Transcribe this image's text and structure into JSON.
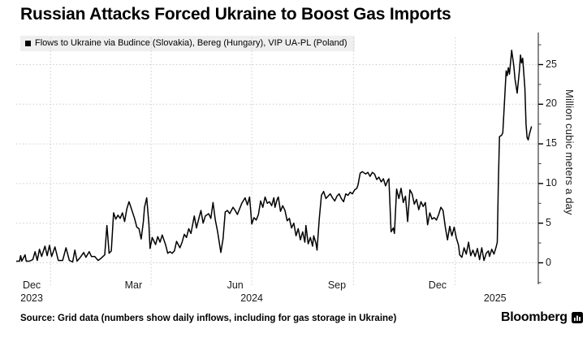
{
  "title": "Russian Attacks Forced Ukraine to Boost Gas Imports",
  "legend": {
    "marker": "black-square",
    "label": "Flows to Ukraine via Budince (Slovakia), Bereg (Hungary), VIP UA-PL (Poland)"
  },
  "source": "Source: Grid data (numbers show daily inflows, including for gas storage in Ukraine)",
  "branding": "Bloomberg",
  "colors": {
    "line": "#000000",
    "grid": "#cccccc",
    "axis": "#3c3c3c",
    "legend_bg": "#efefef",
    "text": "#000000"
  },
  "chart_data": {
    "type": "line",
    "title": "Russian Attacks Forced Ukraine to Boost Gas Imports",
    "ylabel": "Million cubic meters a day",
    "yticks": [
      0,
      5,
      10,
      15,
      20,
      25
    ],
    "ytick_labels": [
      "0",
      "5",
      "10",
      "15",
      "20",
      "25"
    ],
    "minor_tick_step": 2.5,
    "ylim": [
      -2.7,
      29.1
    ],
    "grid": "dotted",
    "legend_position": "top-left",
    "x_axis": {
      "unit": "days since 2023-12-01",
      "start_date": "2023-12-01",
      "end_date": "2025-03-12",
      "tlim": [
        0,
        467
      ],
      "month_labels": [
        {
          "label": "Dec",
          "t": 14
        },
        {
          "label": "Mar",
          "t": 106
        },
        {
          "label": "Jun",
          "t": 198
        },
        {
          "label": "Sep",
          "t": 290
        },
        {
          "label": "Dec",
          "t": 381
        }
      ],
      "year_labels": [
        {
          "label": "2023",
          "t": 14
        },
        {
          "label": "2024",
          "t": 213
        },
        {
          "label": "2025",
          "t": 433
        }
      ],
      "gridline_t": [
        31,
        122,
        213,
        305,
        397
      ]
    },
    "series": [
      {
        "name": "Flows to Ukraine via Budince (Slovakia), Bereg (Hungary), VIP UA-PL (Poland)",
        "color": "#000000",
        "points": [
          [
            0,
            0.2
          ],
          [
            3,
            0.2
          ],
          [
            4,
            0.9
          ],
          [
            5,
            0.2
          ],
          [
            8,
            1.0
          ],
          [
            9,
            0.2
          ],
          [
            12,
            0.2
          ],
          [
            15,
            0.4
          ],
          [
            17,
            1.4
          ],
          [
            19,
            0.3
          ],
          [
            21,
            1.7
          ],
          [
            23,
            0.8
          ],
          [
            26,
            2.1
          ],
          [
            28,
            0.9
          ],
          [
            30,
            2.2
          ],
          [
            32,
            0.8
          ],
          [
            35,
            2.0
          ],
          [
            38,
            0.3
          ],
          [
            42,
            0.3
          ],
          [
            45,
            1.9
          ],
          [
            48,
            0.3
          ],
          [
            51,
            0.1
          ],
          [
            53,
            1.6
          ],
          [
            55,
            0.2
          ],
          [
            58,
            0.7
          ],
          [
            61,
            1.3
          ],
          [
            63,
            0.7
          ],
          [
            66,
            1.4
          ],
          [
            68,
            0.8
          ],
          [
            71,
            0.8
          ],
          [
            74,
            0.3
          ],
          [
            77,
            0.6
          ],
          [
            80,
            1.0
          ],
          [
            82,
            4.7
          ],
          [
            84,
            1.2
          ],
          [
            86,
            1.5
          ],
          [
            88,
            6.3
          ],
          [
            90,
            5.5
          ],
          [
            92,
            6.0
          ],
          [
            94,
            5.6
          ],
          [
            96,
            6.3
          ],
          [
            98,
            5.2
          ],
          [
            100,
            6.8
          ],
          [
            102,
            7.7
          ],
          [
            104,
            6.9
          ],
          [
            107,
            5.6
          ],
          [
            109,
            4.5
          ],
          [
            111,
            4.3
          ],
          [
            113,
            3.0
          ],
          [
            115,
            5.2
          ],
          [
            116,
            7.0
          ],
          [
            118,
            8.2
          ],
          [
            120,
            4.9
          ],
          [
            121,
            1.8
          ],
          [
            123,
            3.2
          ],
          [
            126,
            2.3
          ],
          [
            128,
            3.3
          ],
          [
            130,
            2.6
          ],
          [
            132,
            3.5
          ],
          [
            135,
            2.3
          ],
          [
            137,
            1.2
          ],
          [
            139,
            1.4
          ],
          [
            141,
            1.2
          ],
          [
            143,
            1.5
          ],
          [
            145,
            2.7
          ],
          [
            148,
            1.9
          ],
          [
            150,
            2.6
          ],
          [
            152,
            3.6
          ],
          [
            154,
            3.2
          ],
          [
            156,
            4.3
          ],
          [
            158,
            3.7
          ],
          [
            161,
            5.9
          ],
          [
            163,
            4.4
          ],
          [
            165,
            5.5
          ],
          [
            167,
            6.6
          ],
          [
            169,
            5.0
          ],
          [
            171,
            5.9
          ],
          [
            174,
            6.2
          ],
          [
            176,
            5.6
          ],
          [
            178,
            7.6
          ],
          [
            180,
            5.4
          ],
          [
            182,
            4.0
          ],
          [
            185,
            1.3
          ],
          [
            187,
            3.0
          ],
          [
            189,
            6.4
          ],
          [
            191,
            6.6
          ],
          [
            193,
            6.2
          ],
          [
            196,
            7.0
          ],
          [
            198,
            6.6
          ],
          [
            200,
            6.1
          ],
          [
            202,
            6.8
          ],
          [
            204,
            7.5
          ],
          [
            207,
            8.2
          ],
          [
            209,
            7.3
          ],
          [
            211,
            8.3
          ],
          [
            213,
            4.9
          ],
          [
            215,
            5.7
          ],
          [
            217,
            5.4
          ],
          [
            219,
            6.1
          ],
          [
            221,
            7.8
          ],
          [
            223,
            7.0
          ],
          [
            225,
            8.3
          ],
          [
            227,
            7.5
          ],
          [
            229,
            7.7
          ],
          [
            231,
            7.2
          ],
          [
            233,
            8.2
          ],
          [
            234,
            7.0
          ],
          [
            236,
            8.0
          ],
          [
            237,
            8.3
          ],
          [
            239,
            6.5
          ],
          [
            241,
            7.2
          ],
          [
            243,
            6.6
          ],
          [
            245,
            5.3
          ],
          [
            247,
            5.6
          ],
          [
            249,
            4.4
          ],
          [
            251,
            5.0
          ],
          [
            253,
            3.4
          ],
          [
            255,
            4.3
          ],
          [
            257,
            2.9
          ],
          [
            259,
            3.9
          ],
          [
            261,
            2.6
          ],
          [
            262,
            4.7
          ],
          [
            264,
            2.4
          ],
          [
            266,
            3.2
          ],
          [
            268,
            2.1
          ],
          [
            269,
            3.4
          ],
          [
            271,
            2.5
          ],
          [
            272,
            1.6
          ],
          [
            274,
            5.5
          ],
          [
            276,
            8.5
          ],
          [
            278,
            9.0
          ],
          [
            280,
            8.1
          ],
          [
            282,
            8.4
          ],
          [
            284,
            8.7
          ],
          [
            286,
            8.2
          ],
          [
            288,
            7.8
          ],
          [
            290,
            8.4
          ],
          [
            292,
            8.7
          ],
          [
            294,
            8.1
          ],
          [
            296,
            7.7
          ],
          [
            298,
            8.7
          ],
          [
            300,
            8.5
          ],
          [
            302,
            8.9
          ],
          [
            304,
            8.7
          ],
          [
            306,
            9.2
          ],
          [
            308,
            9.4
          ],
          [
            309,
            9.8
          ],
          [
            311,
            11.3
          ],
          [
            313,
            11.5
          ],
          [
            316,
            11.2
          ],
          [
            318,
            11.4
          ],
          [
            320,
            10.9
          ],
          [
            322,
            11.4
          ],
          [
            324,
            11.2
          ],
          [
            326,
            10.5
          ],
          [
            328,
            10.8
          ],
          [
            330,
            10.2
          ],
          [
            332,
            10.6
          ],
          [
            334,
            9.7
          ],
          [
            336,
            10.4
          ],
          [
            337,
            10.6
          ],
          [
            339,
            3.9
          ],
          [
            341,
            4.4
          ],
          [
            342,
            3.7
          ],
          [
            344,
            9.3
          ],
          [
            346,
            8.1
          ],
          [
            348,
            9.4
          ],
          [
            350,
            7.6
          ],
          [
            352,
            8.4
          ],
          [
            354,
            5.2
          ],
          [
            356,
            9.2
          ],
          [
            358,
            8.7
          ],
          [
            360,
            7.4
          ],
          [
            362,
            8.0
          ],
          [
            364,
            6.7
          ],
          [
            366,
            7.7
          ],
          [
            368,
            7.1
          ],
          [
            370,
            7.6
          ],
          [
            372,
            4.8
          ],
          [
            374,
            6.3
          ],
          [
            376,
            5.5
          ],
          [
            378,
            5.7
          ],
          [
            380,
            5.4
          ],
          [
            382,
            6.1
          ],
          [
            384,
            7.0
          ],
          [
            386,
            6.6
          ],
          [
            388,
            4.5
          ],
          [
            390,
            2.9
          ],
          [
            392,
            4.6
          ],
          [
            394,
            3.4
          ],
          [
            396,
            4.5
          ],
          [
            398,
            3.1
          ],
          [
            400,
            2.2
          ],
          [
            401,
            1.0
          ],
          [
            403,
            0.7
          ],
          [
            405,
            1.9
          ],
          [
            407,
            1.1
          ],
          [
            409,
            2.6
          ],
          [
            411,
            0.9
          ],
          [
            413,
            1.6
          ],
          [
            415,
            0.8
          ],
          [
            417,
            1.8
          ],
          [
            419,
            0.4
          ],
          [
            421,
            1.9
          ],
          [
            423,
            0.3
          ],
          [
            425,
            1.2
          ],
          [
            427,
            1.5
          ],
          [
            428,
            0.8
          ],
          [
            430,
            1.7
          ],
          [
            432,
            1.1
          ],
          [
            434,
            2.0
          ],
          [
            435,
            2.6
          ],
          [
            436,
            10.0
          ],
          [
            437,
            15.9
          ],
          [
            439,
            16.1
          ],
          [
            440,
            16.4
          ],
          [
            442,
            21.5
          ],
          [
            443,
            24.2
          ],
          [
            444,
            23.6
          ],
          [
            445,
            24.6
          ],
          [
            446,
            23.8
          ],
          [
            447,
            25.2
          ],
          [
            448,
            26.8
          ],
          [
            450,
            24.8
          ],
          [
            451,
            23.2
          ],
          [
            453,
            21.4
          ],
          [
            455,
            24.2
          ],
          [
            456,
            26.2
          ],
          [
            457,
            25.2
          ],
          [
            458,
            25.8
          ],
          [
            460,
            22.0
          ],
          [
            461,
            17.5
          ],
          [
            462,
            15.8
          ],
          [
            463,
            15.5
          ],
          [
            464,
            16.2
          ],
          [
            466,
            17.2
          ]
        ]
      }
    ]
  }
}
